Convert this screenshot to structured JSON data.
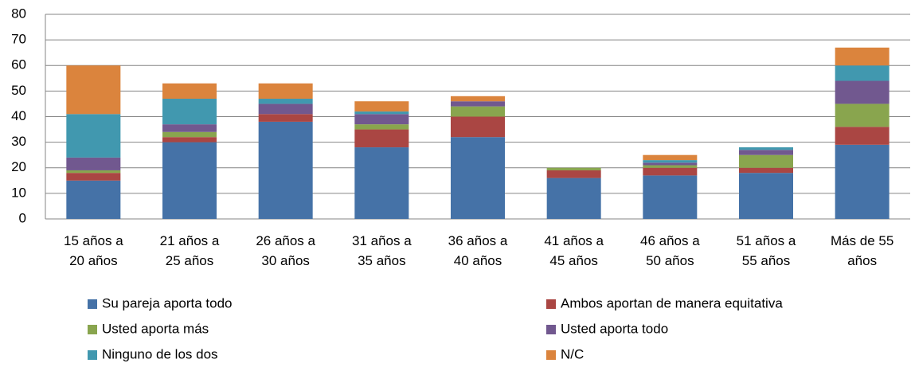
{
  "chart_data": {
    "type": "stacked_bar",
    "categories": [
      "15 años a\n20 años",
      "21 años a\n25 años",
      "26 años a\n30 años",
      "31 años a\n35 años",
      "36 años a\n40 años",
      "41 años a\n45 años",
      "46 años a\n50 años",
      "51 años a\n55 años",
      "Más de 55\naños"
    ],
    "series": [
      {
        "name": "Su pareja aporta todo",
        "color": "#4572a7",
        "values": [
          15,
          30,
          38,
          28,
          32,
          16,
          17,
          18,
          29
        ]
      },
      {
        "name": "Ambos aportan de manera equitativa",
        "color": "#aa4643",
        "values": [
          3,
          2,
          3,
          7,
          8,
          3,
          3,
          2,
          7
        ]
      },
      {
        "name": "Usted aporta más",
        "color": "#89a54e",
        "values": [
          1,
          2,
          0,
          2,
          4,
          1,
          1,
          5,
          9
        ]
      },
      {
        "name": "Usted aporta todo",
        "color": "#71588f",
        "values": [
          5,
          3,
          4,
          4,
          2,
          0,
          1,
          2,
          9
        ]
      },
      {
        "name": "Ninguno de los dos",
        "color": "#4198af",
        "values": [
          17,
          10,
          2,
          1,
          0,
          0,
          1,
          1,
          6
        ]
      },
      {
        "name": "N/C",
        "color": "#db843d",
        "values": [
          19,
          6,
          6,
          4,
          2,
          0,
          2,
          0,
          7
        ]
      }
    ],
    "ylim": [
      0,
      80
    ],
    "yticks": [
      0,
      10,
      20,
      30,
      40,
      50,
      60,
      70,
      80
    ],
    "grid": true
  }
}
